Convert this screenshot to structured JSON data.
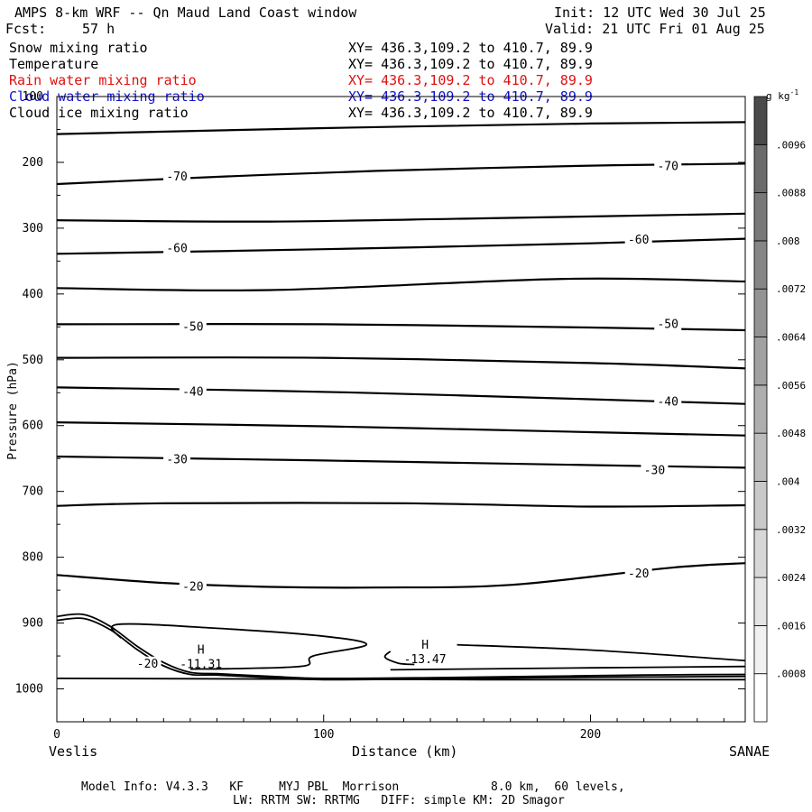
{
  "header": {
    "title": "AMPS 8-km WRF -- Qn Maud Land Coast window",
    "fcst_label": "Fcst:",
    "fcst_value": "57 h",
    "init": "Init: 12 UTC Wed 30 Jul 25",
    "valid": "Valid: 21 UTC Fri 01 Aug 25"
  },
  "legend": [
    {
      "name": "Snow mixing ratio",
      "xy": "XY= 436.3,109.2 to 410.7, 89.9",
      "color": "#000000"
    },
    {
      "name": "Temperature",
      "xy": "XY= 436.3,109.2 to 410.7, 89.9",
      "color": "#000000"
    },
    {
      "name": "Rain water mixing ratio",
      "xy": "XY= 436.3,109.2 to 410.7, 89.9",
      "color": "#e01010"
    },
    {
      "name": "Cloud water mixing ratio",
      "xy": "XY= 436.3,109.2 to 410.7, 89.9",
      "color": "#1010d0"
    },
    {
      "name": "Cloud ice mixing ratio",
      "xy": "XY= 436.3,109.2 to 410.7, 89.9",
      "color": "#000000"
    }
  ],
  "endpoints": {
    "left": "Veslis",
    "right": "SANAE"
  },
  "footer": {
    "line1": "Model Info: V4.3.3   KF     MYJ PBL  Morrison             8.0 km,  60 levels,",
    "line2": "LW: RRTM SW: RRTMG   DIFF: simple KM: 2D Smagor"
  },
  "chart_data": {
    "type": "contour",
    "xlabel": "Distance (km)",
    "ylabel": "Pressure (hPa)",
    "xlim": [
      0,
      258
    ],
    "ylim": [
      1050,
      100
    ],
    "x_ticks": [
      0,
      100,
      200
    ],
    "y_ticks": [
      100,
      200,
      300,
      400,
      500,
      600,
      700,
      800,
      900,
      1000
    ],
    "colorbar": {
      "unit": "g kg",
      "unit_exp": "-1",
      "ticks": [
        ".0008",
        ".0016",
        ".0024",
        ".0032",
        ".004",
        ".0048",
        ".0056",
        ".0064",
        ".0072",
        ".008",
        ".0088",
        ".0096"
      ],
      "n_boxes": 13,
      "colors": [
        "#ffffff",
        "#f1f1f1",
        "#e4e4e4",
        "#d7d7d7",
        "#c9c9c9",
        "#bcbcbc",
        "#aeaeae",
        "#a1a1a1",
        "#939393",
        "#868686",
        "#787878",
        "#6b6b6b",
        "#4a4a4a"
      ]
    },
    "isotherms": [
      {
        "x": [
          0,
          100,
          200,
          258
        ],
        "p": [
          157,
          148,
          141,
          139
        ]
      },
      {
        "x": [
          0,
          60,
          120,
          200,
          258
        ],
        "p": [
          233,
          222,
          213,
          205,
          202
        ]
      },
      {
        "x": [
          0,
          80,
          160,
          258
        ],
        "p": [
          288,
          290,
          285,
          278
        ]
      },
      {
        "x": [
          0,
          100,
          200,
          258
        ],
        "p": [
          339,
          332,
          323,
          316
        ]
      },
      {
        "x": [
          0,
          80,
          190,
          258
        ],
        "p": [
          391,
          394,
          377,
          381
        ]
      },
      {
        "x": [
          0,
          100,
          200,
          258
        ],
        "p": [
          446,
          446,
          451,
          455
        ]
      },
      {
        "x": [
          0,
          100,
          200,
          258
        ],
        "p": [
          497,
          497,
          505,
          513
        ]
      },
      {
        "x": [
          0,
          80,
          150,
          258
        ],
        "p": [
          542,
          547,
          554,
          567
        ]
      },
      {
        "x": [
          0,
          100,
          200,
          258
        ],
        "p": [
          595,
          601,
          610,
          615
        ]
      },
      {
        "x": [
          0,
          100,
          200,
          258
        ],
        "p": [
          647,
          653,
          660,
          664
        ]
      },
      {
        "x": [
          0,
          40,
          130,
          200,
          258
        ],
        "p": [
          722,
          718,
          718,
          723,
          721
        ]
      },
      {
        "x": [
          0,
          40,
          80,
          120,
          170,
          230,
          258
        ],
        "p": [
          827,
          839,
          845,
          846,
          842,
          816,
          809
        ]
      }
    ],
    "temp_labels": [
      {
        "text": "-70",
        "x": 45,
        "p": 222
      },
      {
        "text": "-70",
        "x": 229,
        "p": 206
      },
      {
        "text": "-60",
        "x": 45,
        "p": 331
      },
      {
        "text": "-60",
        "x": 218,
        "p": 318
      },
      {
        "text": "-50",
        "x": 51,
        "p": 450
      },
      {
        "text": "-50",
        "x": 229,
        "p": 446
      },
      {
        "text": "-40",
        "x": 51,
        "p": 549
      },
      {
        "text": "-40",
        "x": 229,
        "p": 564
      },
      {
        "text": "-30",
        "x": 45,
        "p": 652
      },
      {
        "text": "-30",
        "x": 224,
        "p": 668
      },
      {
        "text": "-20",
        "x": 51,
        "p": 845
      },
      {
        "text": "-20",
        "x": 218,
        "p": 825
      },
      {
        "text": "-20",
        "x": 34,
        "p": 962
      }
    ],
    "terrain_lines": [
      {
        "x": [
          0,
          10,
          20,
          30,
          40,
          50,
          60,
          80,
          100,
          140,
          180,
          220,
          258
        ],
        "p": [
          890,
          887,
          905,
          935,
          960,
          975,
          977,
          981,
          984,
          983,
          981,
          979,
          978
        ]
      },
      {
        "x": [
          0,
          10,
          20,
          30,
          40,
          50,
          60,
          80,
          100,
          140,
          180,
          220,
          258
        ],
        "p": [
          896,
          893,
          910,
          940,
          965,
          978,
          979,
          983,
          986,
          985,
          983,
          982,
          981
        ]
      },
      {
        "x": [
          24,
          23,
          60,
          100,
          116,
          96,
          93,
          70,
          50
        ],
        "p": [
          923,
          902,
          908,
          920,
          933,
          950,
          965,
          969,
          970
        ]
      },
      {
        "x": [
          125,
          123,
          128,
          134
        ],
        "p": [
          943,
          952,
          961,
          963
        ]
      },
      {
        "x": [
          150,
          200,
          258
        ],
        "p": [
          933,
          941,
          957
        ]
      },
      {
        "x": [
          125,
          200,
          258
        ],
        "p": [
          971,
          968,
          966
        ]
      },
      {
        "x": [
          0,
          80,
          160,
          258
        ],
        "p": [
          984,
          985,
          986,
          986
        ]
      }
    ],
    "highs": [
      {
        "symbol": "H",
        "value": "-11.31",
        "x": 54,
        "p": 948
      },
      {
        "symbol": "H",
        "value": "-13.47",
        "x": 138,
        "p": 940
      }
    ]
  }
}
